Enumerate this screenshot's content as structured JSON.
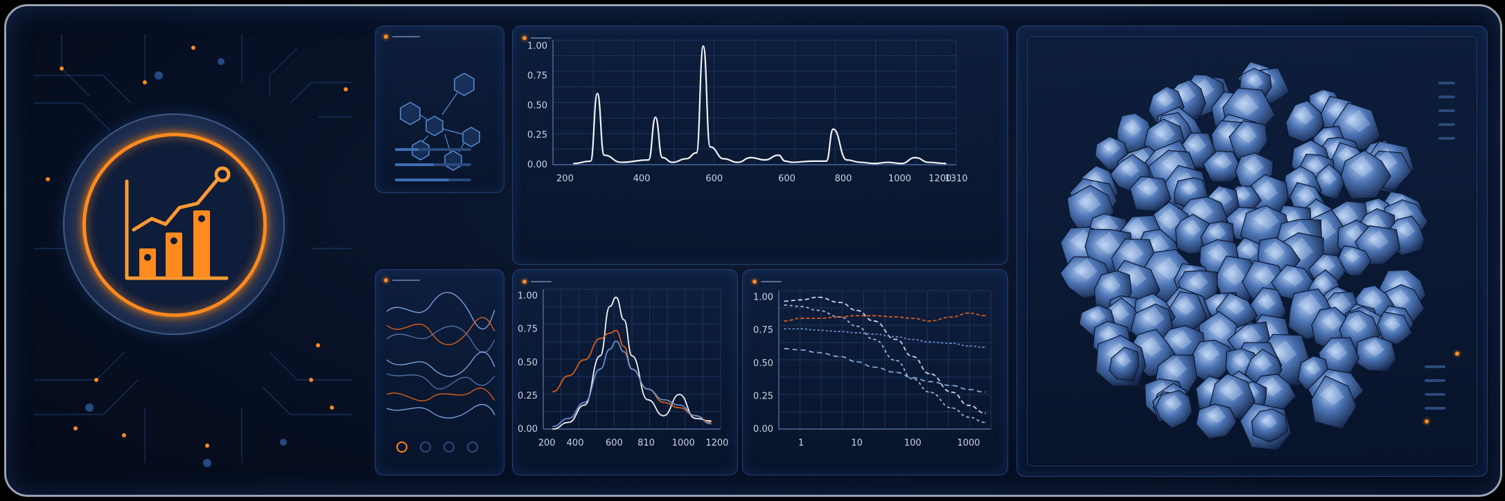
{
  "colors": {
    "accent": "#ff8a1e",
    "panel_border": "#24406e",
    "line_white": "#ffffff",
    "line_blue": "#6f95d6",
    "line_orange": "#e0621a"
  },
  "hero_icon": {
    "name": "growth-chart-icon"
  },
  "status_dots": [
    "active",
    "idle",
    "idle",
    "idle"
  ],
  "charts": [
    {
      "type": "line",
      "x_ticks": [
        "200",
        "400",
        "600",
        "600",
        "800",
        "1000",
        "1200",
        "1310"
      ],
      "y_ticks": [
        "1.00",
        "0.75",
        "0.50",
        "0.25",
        "0.00"
      ],
      "x": [
        200,
        250,
        270,
        290,
        340,
        420,
        440,
        460,
        490,
        530,
        560,
        580,
        600,
        640,
        680,
        720,
        760,
        800,
        820,
        840,
        900,
        940,
        960,
        1000,
        1040,
        1080,
        1120,
        1160,
        1200,
        1240,
        1290
      ],
      "values": [
        0.01,
        0.03,
        0.6,
        0.08,
        0.02,
        0.04,
        0.4,
        0.06,
        0.02,
        0.05,
        0.1,
        1.0,
        0.15,
        0.05,
        0.02,
        0.06,
        0.04,
        0.08,
        0.03,
        0.02,
        0.03,
        0.03,
        0.3,
        0.04,
        0.02,
        0.01,
        0.02,
        0.01,
        0.06,
        0.02,
        0.01
      ],
      "ylim": [
        0,
        1.05
      ]
    },
    {
      "type": "line",
      "x_ticks": [
        "200",
        "400",
        "600",
        "810",
        "1000",
        "1200"
      ],
      "y_ticks": [
        "1.00",
        "0.75",
        "0.50",
        "0.25",
        "0.00"
      ],
      "series": [
        {
          "x": [
            200,
            300,
            400,
            500,
            560,
            600,
            650,
            700,
            800,
            900,
            1000,
            1100,
            1200
          ],
          "values": [
            0.0,
            0.05,
            0.18,
            0.55,
            0.92,
            0.99,
            0.82,
            0.55,
            0.22,
            0.1,
            0.26,
            0.08,
            0.06
          ]
        },
        {
          "x": [
            200,
            300,
            400,
            500,
            560,
            600,
            650,
            700,
            800,
            900,
            1000,
            1100,
            1200
          ],
          "values": [
            0.28,
            0.4,
            0.52,
            0.68,
            0.72,
            0.74,
            0.62,
            0.45,
            0.3,
            0.2,
            0.16,
            0.1,
            0.05
          ]
        },
        {
          "x": [
            200,
            300,
            400,
            500,
            560,
            600,
            650,
            700,
            800,
            900,
            1000,
            1100,
            1200
          ],
          "values": [
            0.02,
            0.08,
            0.2,
            0.45,
            0.6,
            0.66,
            0.58,
            0.45,
            0.3,
            0.22,
            0.18,
            0.1,
            0.04
          ]
        }
      ],
      "ylim": [
        0,
        1.05
      ]
    },
    {
      "type": "line",
      "x_scale": "log",
      "x_ticks": [
        "1",
        "10",
        "100",
        "1000"
      ],
      "y_ticks": [
        "1.00",
        "0.75",
        "0.50",
        "0.25",
        "0.00"
      ],
      "series": [
        {
          "x": [
            0.5,
            1,
            2,
            5,
            10,
            20,
            50,
            100,
            200,
            500,
            1000,
            2000
          ],
          "values": [
            0.97,
            0.98,
            1.0,
            0.96,
            0.9,
            0.82,
            0.68,
            0.55,
            0.42,
            0.28,
            0.18,
            0.12
          ]
        },
        {
          "x": [
            0.5,
            1,
            2,
            5,
            10,
            20,
            50,
            100,
            200,
            500,
            1000,
            2000
          ],
          "values": [
            0.94,
            0.93,
            0.9,
            0.85,
            0.78,
            0.68,
            0.52,
            0.38,
            0.28,
            0.16,
            0.09,
            0.05
          ]
        },
        {
          "x": [
            0.5,
            1,
            2,
            5,
            10,
            20,
            50,
            100,
            200,
            500,
            1000,
            2000
          ],
          "values": [
            0.82,
            0.84,
            0.84,
            0.85,
            0.86,
            0.86,
            0.85,
            0.84,
            0.82,
            0.85,
            0.88,
            0.86
          ]
        },
        {
          "x": [
            0.5,
            1,
            2,
            5,
            10,
            20,
            50,
            100,
            200,
            500,
            1000,
            2000
          ],
          "values": [
            0.76,
            0.76,
            0.75,
            0.74,
            0.73,
            0.72,
            0.7,
            0.68,
            0.66,
            0.65,
            0.63,
            0.62
          ]
        },
        {
          "x": [
            0.5,
            1,
            2,
            5,
            10,
            20,
            50,
            100,
            200,
            500,
            1000,
            2000
          ],
          "values": [
            0.61,
            0.6,
            0.58,
            0.55,
            0.51,
            0.47,
            0.43,
            0.39,
            0.36,
            0.33,
            0.3,
            0.28
          ]
        }
      ],
      "ylim": [
        0,
        1.05
      ]
    }
  ]
}
